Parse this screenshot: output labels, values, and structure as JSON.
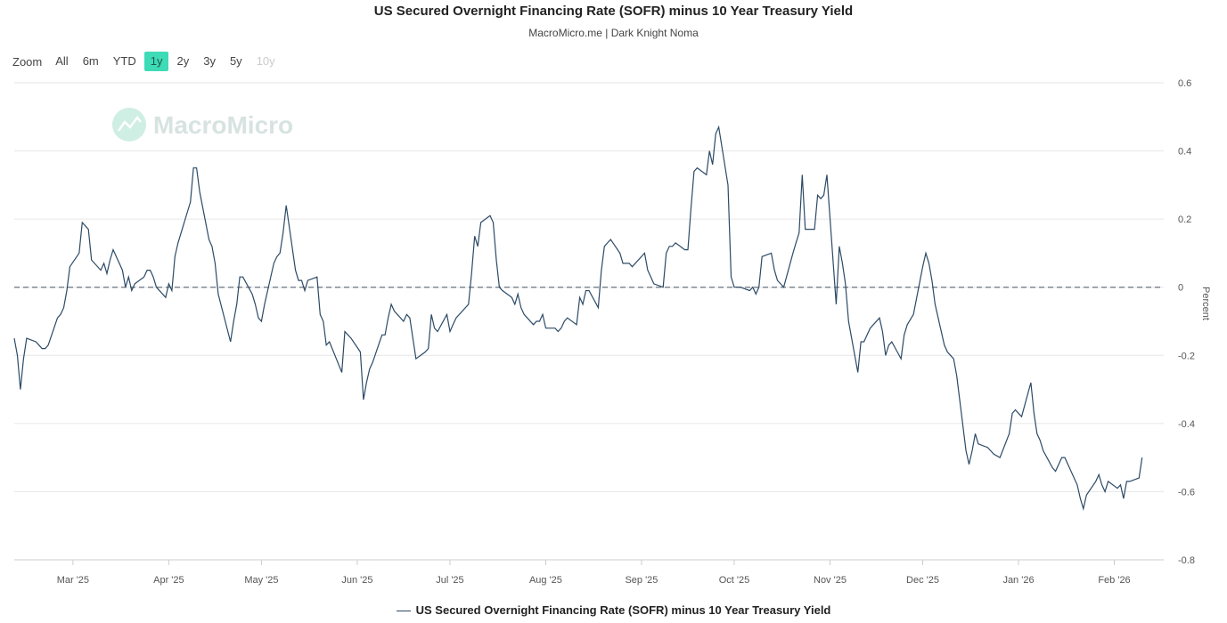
{
  "header": {
    "title": "US Secured Overnight Financing Rate (SOFR) minus 10 Year Treasury Yield",
    "subtitle": "MacroMicro.me | Dark Knight Noma"
  },
  "zoom": {
    "label": "Zoom",
    "options": [
      "All",
      "6m",
      "YTD",
      "1y",
      "2y",
      "3y",
      "5y",
      "10y"
    ],
    "selected": "1y",
    "disabled": [
      "10y"
    ]
  },
  "watermark": {
    "text": "MacroMicro"
  },
  "colors": {
    "line": "#2c4a66",
    "accent": "#3ddbb6",
    "grid": "#e6e6e6",
    "zero_line": "#7f8790"
  },
  "chart_data": {
    "type": "line",
    "title": "US Secured Overnight Financing Rate (SOFR) minus 10 Year Treasury Yield",
    "ylabel": "Percent",
    "ylim": [
      -0.8,
      0.6
    ],
    "yticks": [
      0.6,
      0.4,
      0.2,
      0,
      -0.2,
      -0.4,
      -0.6,
      -0.8
    ],
    "xlim": [
      "2025-02-10",
      "2026-02-17"
    ],
    "xticks": [
      {
        "date": "2025-03-01",
        "label": "Mar '25"
      },
      {
        "date": "2025-04-01",
        "label": "Apr '25"
      },
      {
        "date": "2025-05-01",
        "label": "May '25"
      },
      {
        "date": "2025-06-01",
        "label": "Jun '25"
      },
      {
        "date": "2025-07-01",
        "label": "Jul '25"
      },
      {
        "date": "2025-08-01",
        "label": "Aug '25"
      },
      {
        "date": "2025-09-01",
        "label": "Sep '25"
      },
      {
        "date": "2025-10-01",
        "label": "Oct '25"
      },
      {
        "date": "2025-11-01",
        "label": "Nov '25"
      },
      {
        "date": "2025-12-01",
        "label": "Dec '25"
      },
      {
        "date": "2026-01-01",
        "label": "Jan '26"
      },
      {
        "date": "2026-02-01",
        "label": "Feb '26"
      }
    ],
    "reference_line": 0,
    "grid": true,
    "legend_position": "bottom-center",
    "series": [
      {
        "name": "US Secured Overnight Financing Rate (SOFR) minus 10 Year Treasury Yield",
        "points": [
          [
            "2025-02-10",
            -0.15
          ],
          [
            "2025-02-11",
            -0.2
          ],
          [
            "2025-02-12",
            -0.3
          ],
          [
            "2025-02-13",
            -0.21
          ],
          [
            "2025-02-14",
            -0.15
          ],
          [
            "2025-02-17",
            -0.16
          ],
          [
            "2025-02-18",
            -0.17
          ],
          [
            "2025-02-19",
            -0.18
          ],
          [
            "2025-02-20",
            -0.18
          ],
          [
            "2025-02-21",
            -0.17
          ],
          [
            "2025-02-24",
            -0.09
          ],
          [
            "2025-02-25",
            -0.08
          ],
          [
            "2025-02-26",
            -0.06
          ],
          [
            "2025-02-27",
            -0.01
          ],
          [
            "2025-02-28",
            0.06
          ],
          [
            "2025-03-03",
            0.1
          ],
          [
            "2025-03-04",
            0.19
          ],
          [
            "2025-03-05",
            0.18
          ],
          [
            "2025-03-06",
            0.17
          ],
          [
            "2025-03-07",
            0.08
          ],
          [
            "2025-03-10",
            0.05
          ],
          [
            "2025-03-11",
            0.07
          ],
          [
            "2025-03-12",
            0.04
          ],
          [
            "2025-03-13",
            0.08
          ],
          [
            "2025-03-14",
            0.11
          ],
          [
            "2025-03-17",
            0.05
          ],
          [
            "2025-03-18",
            0.0
          ],
          [
            "2025-03-19",
            0.03
          ],
          [
            "2025-03-20",
            -0.01
          ],
          [
            "2025-03-21",
            0.01
          ],
          [
            "2025-03-24",
            0.03
          ],
          [
            "2025-03-25",
            0.05
          ],
          [
            "2025-03-26",
            0.05
          ],
          [
            "2025-03-27",
            0.03
          ],
          [
            "2025-03-28",
            0.0
          ],
          [
            "2025-03-31",
            -0.03
          ],
          [
            "2025-04-01",
            0.01
          ],
          [
            "2025-04-02",
            -0.01
          ],
          [
            "2025-04-03",
            0.09
          ],
          [
            "2025-04-04",
            0.13
          ],
          [
            "2025-04-07",
            0.22
          ],
          [
            "2025-04-08",
            0.25
          ],
          [
            "2025-04-09",
            0.35
          ],
          [
            "2025-04-10",
            0.35
          ],
          [
            "2025-04-11",
            0.28
          ],
          [
            "2025-04-14",
            0.14
          ],
          [
            "2025-04-15",
            0.12
          ],
          [
            "2025-04-16",
            0.07
          ],
          [
            "2025-04-17",
            -0.02
          ],
          [
            "2025-04-21",
            -0.16
          ],
          [
            "2025-04-22",
            -0.1
          ],
          [
            "2025-04-23",
            -0.05
          ],
          [
            "2025-04-24",
            0.03
          ],
          [
            "2025-04-25",
            0.03
          ],
          [
            "2025-04-28",
            -0.02
          ],
          [
            "2025-04-29",
            -0.05
          ],
          [
            "2025-04-30",
            -0.09
          ],
          [
            "2025-05-01",
            -0.1
          ],
          [
            "2025-05-02",
            -0.05
          ],
          [
            "2025-05-05",
            0.07
          ],
          [
            "2025-05-06",
            0.09
          ],
          [
            "2025-05-07",
            0.1
          ],
          [
            "2025-05-08",
            0.16
          ],
          [
            "2025-05-09",
            0.24
          ],
          [
            "2025-05-12",
            0.05
          ],
          [
            "2025-05-13",
            0.02
          ],
          [
            "2025-05-14",
            0.02
          ],
          [
            "2025-05-15",
            -0.01
          ],
          [
            "2025-05-16",
            0.02
          ],
          [
            "2025-05-19",
            0.03
          ],
          [
            "2025-05-20",
            -0.08
          ],
          [
            "2025-05-21",
            -0.1
          ],
          [
            "2025-05-22",
            -0.17
          ],
          [
            "2025-05-23",
            -0.16
          ],
          [
            "2025-05-27",
            -0.25
          ],
          [
            "2025-05-28",
            -0.13
          ],
          [
            "2025-05-29",
            -0.14
          ],
          [
            "2025-05-30",
            -0.15
          ],
          [
            "2025-06-02",
            -0.19
          ],
          [
            "2025-06-03",
            -0.33
          ],
          [
            "2025-06-04",
            -0.28
          ],
          [
            "2025-06-05",
            -0.24
          ],
          [
            "2025-06-06",
            -0.22
          ],
          [
            "2025-06-09",
            -0.14
          ],
          [
            "2025-06-10",
            -0.14
          ],
          [
            "2025-06-11",
            -0.09
          ],
          [
            "2025-06-12",
            -0.05
          ],
          [
            "2025-06-13",
            -0.07
          ],
          [
            "2025-06-16",
            -0.1
          ],
          [
            "2025-06-17",
            -0.08
          ],
          [
            "2025-06-18",
            -0.09
          ],
          [
            "2025-06-20",
            -0.21
          ],
          [
            "2025-06-23",
            -0.19
          ],
          [
            "2025-06-24",
            -0.18
          ],
          [
            "2025-06-25",
            -0.08
          ],
          [
            "2025-06-26",
            -0.12
          ],
          [
            "2025-06-27",
            -0.13
          ],
          [
            "2025-06-30",
            -0.08
          ],
          [
            "2025-07-01",
            -0.13
          ],
          [
            "2025-07-02",
            -0.11
          ],
          [
            "2025-07-03",
            -0.09
          ],
          [
            "2025-07-07",
            -0.05
          ],
          [
            "2025-07-08",
            0.04
          ],
          [
            "2025-07-09",
            0.15
          ],
          [
            "2025-07-10",
            0.12
          ],
          [
            "2025-07-11",
            0.19
          ],
          [
            "2025-07-14",
            0.21
          ],
          [
            "2025-07-15",
            0.19
          ],
          [
            "2025-07-16",
            0.08
          ],
          [
            "2025-07-17",
            0.0
          ],
          [
            "2025-07-18",
            -0.01
          ],
          [
            "2025-07-21",
            -0.03
          ],
          [
            "2025-07-22",
            -0.05
          ],
          [
            "2025-07-23",
            -0.02
          ],
          [
            "2025-07-24",
            -0.06
          ],
          [
            "2025-07-25",
            -0.08
          ],
          [
            "2025-07-28",
            -0.11
          ],
          [
            "2025-07-29",
            -0.1
          ],
          [
            "2025-07-30",
            -0.1
          ],
          [
            "2025-07-31",
            -0.08
          ],
          [
            "2025-08-01",
            -0.12
          ],
          [
            "2025-08-04",
            -0.12
          ],
          [
            "2025-08-05",
            -0.13
          ],
          [
            "2025-08-06",
            -0.12
          ],
          [
            "2025-08-07",
            -0.1
          ],
          [
            "2025-08-08",
            -0.09
          ],
          [
            "2025-08-11",
            -0.11
          ],
          [
            "2025-08-12",
            -0.03
          ],
          [
            "2025-08-13",
            -0.05
          ],
          [
            "2025-08-14",
            -0.01
          ],
          [
            "2025-08-15",
            -0.01
          ],
          [
            "2025-08-18",
            -0.06
          ],
          [
            "2025-08-19",
            0.05
          ],
          [
            "2025-08-20",
            0.12
          ],
          [
            "2025-08-21",
            0.13
          ],
          [
            "2025-08-22",
            0.14
          ],
          [
            "2025-08-25",
            0.1
          ],
          [
            "2025-08-26",
            0.07
          ],
          [
            "2025-08-27",
            0.07
          ],
          [
            "2025-08-28",
            0.07
          ],
          [
            "2025-08-29",
            0.06
          ],
          [
            "2025-09-02",
            0.1
          ],
          [
            "2025-09-03",
            0.05
          ],
          [
            "2025-09-04",
            0.03
          ],
          [
            "2025-09-05",
            0.01
          ],
          [
            "2025-09-08",
            0.0
          ],
          [
            "2025-09-09",
            0.1
          ],
          [
            "2025-09-10",
            0.12
          ],
          [
            "2025-09-11",
            0.12
          ],
          [
            "2025-09-12",
            0.13
          ],
          [
            "2025-09-15",
            0.11
          ],
          [
            "2025-09-16",
            0.11
          ],
          [
            "2025-09-17",
            0.23
          ],
          [
            "2025-09-18",
            0.34
          ],
          [
            "2025-09-19",
            0.35
          ],
          [
            "2025-09-22",
            0.33
          ],
          [
            "2025-09-23",
            0.4
          ],
          [
            "2025-09-24",
            0.36
          ],
          [
            "2025-09-25",
            0.45
          ],
          [
            "2025-09-26",
            0.47
          ],
          [
            "2025-09-29",
            0.3
          ],
          [
            "2025-09-30",
            0.03
          ],
          [
            "2025-10-01",
            0.0
          ],
          [
            "2025-10-02",
            0.0
          ],
          [
            "2025-10-03",
            0.0
          ],
          [
            "2025-10-06",
            -0.01
          ],
          [
            "2025-10-07",
            0.0
          ],
          [
            "2025-10-08",
            -0.02
          ],
          [
            "2025-10-09",
            0.0
          ],
          [
            "2025-10-10",
            0.09
          ],
          [
            "2025-10-13",
            0.1
          ],
          [
            "2025-10-14",
            0.05
          ],
          [
            "2025-10-15",
            0.02
          ],
          [
            "2025-10-16",
            0.01
          ],
          [
            "2025-10-17",
            0.0
          ],
          [
            "2025-10-20",
            0.1
          ],
          [
            "2025-10-21",
            0.13
          ],
          [
            "2025-10-22",
            0.16
          ],
          [
            "2025-10-23",
            0.33
          ],
          [
            "2025-10-24",
            0.17
          ],
          [
            "2025-10-27",
            0.17
          ],
          [
            "2025-10-28",
            0.27
          ],
          [
            "2025-10-29",
            0.26
          ],
          [
            "2025-10-30",
            0.27
          ],
          [
            "2025-10-31",
            0.33
          ],
          [
            "2025-11-03",
            -0.05
          ],
          [
            "2025-11-04",
            0.12
          ],
          [
            "2025-11-05",
            0.07
          ],
          [
            "2025-11-06",
            0.01
          ],
          [
            "2025-11-07",
            -0.1
          ],
          [
            "2025-11-10",
            -0.25
          ],
          [
            "2025-11-11",
            -0.16
          ],
          [
            "2025-11-12",
            -0.16
          ],
          [
            "2025-11-13",
            -0.14
          ],
          [
            "2025-11-14",
            -0.12
          ],
          [
            "2025-11-17",
            -0.09
          ],
          [
            "2025-11-18",
            -0.13
          ],
          [
            "2025-11-19",
            -0.2
          ],
          [
            "2025-11-20",
            -0.17
          ],
          [
            "2025-11-21",
            -0.16
          ],
          [
            "2025-11-24",
            -0.21
          ],
          [
            "2025-11-25",
            -0.14
          ],
          [
            "2025-11-26",
            -0.11
          ],
          [
            "2025-11-28",
            -0.08
          ],
          [
            "2025-12-01",
            0.06
          ],
          [
            "2025-12-02",
            0.1
          ],
          [
            "2025-12-03",
            0.07
          ],
          [
            "2025-12-04",
            0.02
          ],
          [
            "2025-12-05",
            -0.05
          ],
          [
            "2025-12-08",
            -0.17
          ],
          [
            "2025-12-09",
            -0.19
          ],
          [
            "2025-12-10",
            -0.2
          ],
          [
            "2025-12-11",
            -0.21
          ],
          [
            "2025-12-12",
            -0.26
          ],
          [
            "2025-12-15",
            -0.48
          ],
          [
            "2025-12-16",
            -0.52
          ],
          [
            "2025-12-17",
            -0.48
          ],
          [
            "2025-12-18",
            -0.43
          ],
          [
            "2025-12-19",
            -0.46
          ],
          [
            "2025-12-22",
            -0.47
          ],
          [
            "2025-12-23",
            -0.48
          ],
          [
            "2025-12-24",
            -0.49
          ],
          [
            "2025-12-26",
            -0.5
          ],
          [
            "2025-12-29",
            -0.43
          ],
          [
            "2025-12-30",
            -0.37
          ],
          [
            "2025-12-31",
            -0.36
          ],
          [
            "2026-01-02",
            -0.38
          ],
          [
            "2026-01-05",
            -0.28
          ],
          [
            "2026-01-06",
            -0.37
          ],
          [
            "2026-01-07",
            -0.43
          ],
          [
            "2026-01-08",
            -0.45
          ],
          [
            "2026-01-09",
            -0.48
          ],
          [
            "2026-01-12",
            -0.53
          ],
          [
            "2026-01-13",
            -0.54
          ],
          [
            "2026-01-14",
            -0.52
          ],
          [
            "2026-01-15",
            -0.5
          ],
          [
            "2026-01-16",
            -0.5
          ],
          [
            "2026-01-20",
            -0.58
          ],
          [
            "2026-01-21",
            -0.62
          ],
          [
            "2026-01-22",
            -0.65
          ],
          [
            "2026-01-23",
            -0.61
          ],
          [
            "2026-01-26",
            -0.57
          ],
          [
            "2026-01-27",
            -0.55
          ],
          [
            "2026-01-28",
            -0.58
          ],
          [
            "2026-01-29",
            -0.6
          ],
          [
            "2026-01-30",
            -0.57
          ],
          [
            "2026-02-02",
            -0.59
          ],
          [
            "2026-02-03",
            -0.58
          ],
          [
            "2026-02-04",
            -0.62
          ],
          [
            "2026-02-05",
            -0.57
          ],
          [
            "2026-02-06",
            -0.57
          ],
          [
            "2026-02-09",
            -0.56
          ],
          [
            "2026-02-10",
            -0.5
          ]
        ]
      }
    ]
  }
}
